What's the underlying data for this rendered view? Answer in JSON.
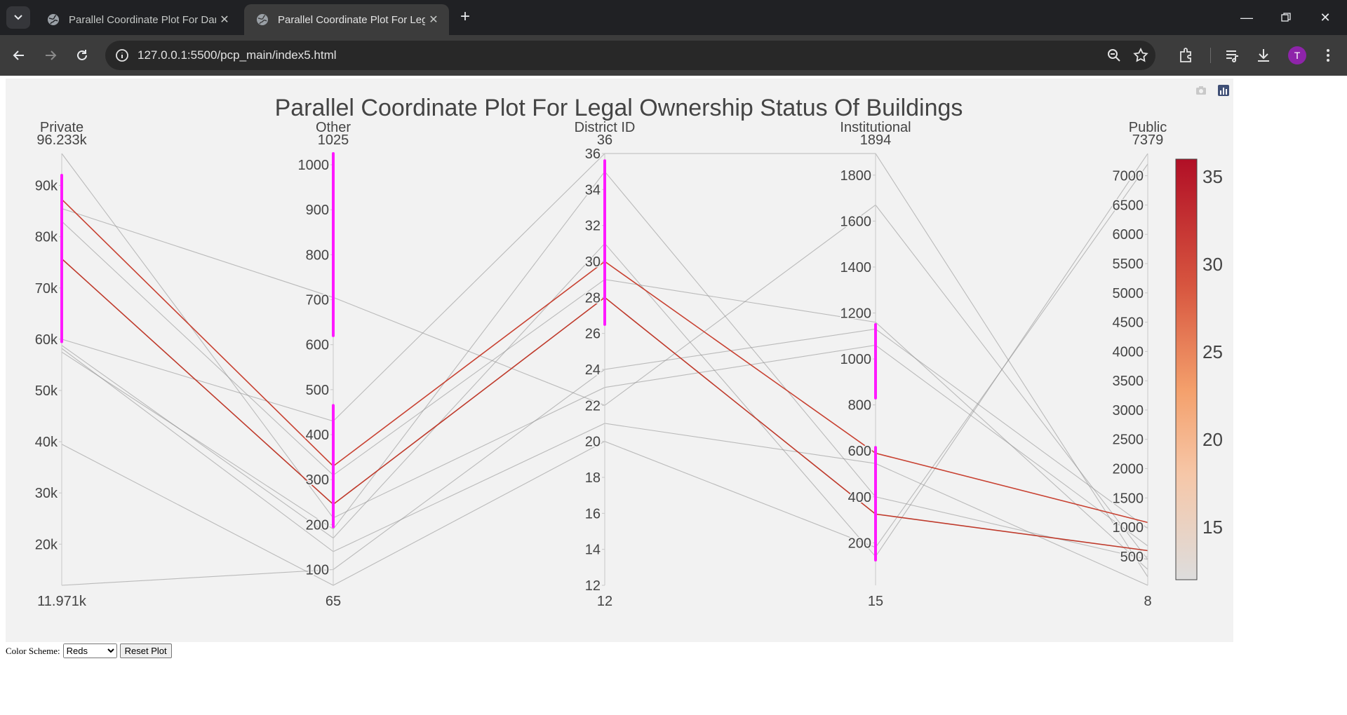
{
  "browser": {
    "tabs": [
      {
        "title": "Parallel Coordinate Plot For Damage",
        "active": false
      },
      {
        "title": "Parallel Coordinate Plot For Legal Ownership",
        "active": true
      }
    ],
    "url": "127.0.0.1:5500/pcp_main/index5.html",
    "profile_initial": "T"
  },
  "controls": {
    "color_scheme_label": "Color Scheme:",
    "color_scheme_value": "Reds",
    "reset_label": "Reset Plot"
  },
  "chart_data": {
    "type": "parallel_coordinates",
    "title": "Parallel Coordinate Plot For Legal Ownership Status Of Buildings",
    "color_scale": "Reds",
    "color_by": "District ID",
    "colorbar": {
      "range": [
        12,
        36
      ],
      "ticks": [
        "15",
        "20",
        "25",
        "30",
        "35"
      ]
    },
    "dimensions": [
      {
        "label": "Private",
        "max_label": "96.233k",
        "min_label": "11.971k",
        "range": [
          11971,
          96233
        ],
        "ticks": [
          "20k",
          "30k",
          "40k",
          "50k",
          "60k",
          "70k",
          "80k",
          "90k"
        ],
        "tick_values": [
          20000,
          30000,
          40000,
          50000,
          60000,
          70000,
          80000,
          90000
        ],
        "constraint": [
          59500,
          92000
        ]
      },
      {
        "label": "Other",
        "max_label": "1025",
        "min_label": "65",
        "range": [
          65,
          1025
        ],
        "ticks": [
          "100",
          "200",
          "300",
          "400",
          "500",
          "600",
          "700",
          "800",
          "900",
          "1000"
        ],
        "tick_values": [
          100,
          200,
          300,
          400,
          500,
          600,
          700,
          800,
          900,
          1000
        ],
        "constraints": [
          [
            620,
            1025
          ],
          [
            195,
            465
          ]
        ]
      },
      {
        "label": "District ID",
        "max_label": "36",
        "min_label": "12",
        "range": [
          12,
          36
        ],
        "ticks": [
          "12",
          "14",
          "16",
          "18",
          "20",
          "22",
          "24",
          "26",
          "28",
          "30",
          "32",
          "34",
          "36"
        ],
        "tick_values": [
          12,
          14,
          16,
          18,
          20,
          22,
          24,
          26,
          28,
          30,
          32,
          34,
          36
        ],
        "constraint": [
          26.5,
          35.6
        ]
      },
      {
        "label": "Institutional",
        "max_label": "1894",
        "min_label": "15",
        "range": [
          15,
          1894
        ],
        "ticks": [
          "200",
          "400",
          "600",
          "800",
          "1000",
          "1200",
          "1400",
          "1600",
          "1800"
        ],
        "tick_values": [
          200,
          400,
          600,
          800,
          1000,
          1200,
          1400,
          1600,
          1800
        ],
        "constraints": [
          [
            830,
            1150
          ],
          [
            125,
            615
          ]
        ]
      },
      {
        "label": "Public",
        "max_label": "7379",
        "min_label": "8",
        "range": [
          8,
          7379
        ],
        "ticks": [
          "500",
          "1000",
          "1500",
          "2000",
          "2500",
          "3000",
          "3500",
          "4000",
          "4500",
          "5000",
          "5500",
          "6000",
          "6500",
          "7000"
        ],
        "tick_values": [
          500,
          1000,
          1500,
          2000,
          2500,
          3000,
          3500,
          4000,
          4500,
          5000,
          5500,
          6000,
          6500,
          7000
        ]
      }
    ],
    "lines": [
      {
        "values": [
          75700,
          245,
          28,
          325,
          600
        ],
        "color": "#bf3a2b",
        "selected": true
      },
      {
        "values": [
          87300,
          330,
          30,
          590,
          1080
        ],
        "color": "#c84131",
        "selected": true
      },
      {
        "values": [
          60000,
          430,
          36,
          1894,
          150
        ],
        "selected": false
      },
      {
        "values": [
          96233,
          215,
          23,
          1060,
          680
        ],
        "selected": false
      },
      {
        "values": [
          85500,
          705,
          22,
          1670,
          450
        ],
        "selected": false
      },
      {
        "values": [
          83000,
          310,
          29,
          1160,
          280
        ],
        "selected": false
      },
      {
        "values": [
          58800,
          170,
          31,
          140,
          7379
        ],
        "selected": false
      },
      {
        "values": [
          58200,
          140,
          21,
          545,
          8
        ],
        "selected": false
      },
      {
        "values": [
          39500,
          65,
          20,
          180,
          7200
        ],
        "selected": false
      },
      {
        "values": [
          11971,
          100,
          24,
          1130,
          980
        ],
        "selected": false
      },
      {
        "values": [
          57500,
          190,
          35,
          400,
          450
        ],
        "selected": false
      }
    ]
  }
}
